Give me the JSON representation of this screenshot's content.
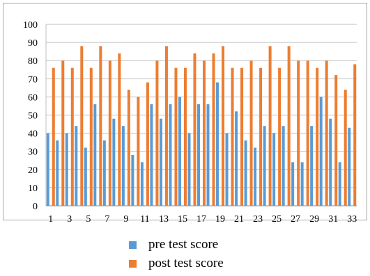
{
  "chart_data": {
    "type": "bar",
    "categories": [
      "1",
      "2",
      "3",
      "4",
      "5",
      "6",
      "7",
      "8",
      "9",
      "10",
      "11",
      "12",
      "13",
      "14",
      "15",
      "16",
      "17",
      "18",
      "19",
      "20",
      "21",
      "22",
      "23",
      "24",
      "25",
      "26",
      "27",
      "28",
      "29",
      "30",
      "31",
      "32",
      "33"
    ],
    "x_tick_labels": [
      "1",
      "3",
      "5",
      "7",
      "9",
      "11",
      "13",
      "15",
      "17",
      "19",
      "21",
      "23",
      "25",
      "27",
      "29",
      "31",
      "33"
    ],
    "y_tick_labels": [
      "0",
      "10",
      "20",
      "30",
      "40",
      "50",
      "60",
      "70",
      "80",
      "90",
      "100"
    ],
    "ylim": [
      0,
      100
    ],
    "grid": "horizontal",
    "legend_position": "bottom",
    "series": [
      {
        "name": "pre test score",
        "color": "#5b9bd5",
        "values": [
          40,
          36,
          40,
          44,
          32,
          56,
          36,
          48,
          44,
          28,
          24,
          56,
          48,
          56,
          60,
          40,
          56,
          56,
          68,
          40,
          52,
          36,
          32,
          44,
          40,
          44,
          24,
          24,
          44,
          60,
          48,
          24,
          43
        ]
      },
      {
        "name": "post test score",
        "color": "#ed7d31",
        "values": [
          76,
          80,
          76,
          88,
          76,
          88,
          80,
          84,
          64,
          60,
          68,
          80,
          88,
          76,
          76,
          84,
          80,
          84,
          88,
          76,
          76,
          80,
          76,
          88,
          76,
          88,
          80,
          80,
          76,
          80,
          72,
          64,
          78
        ]
      }
    ]
  }
}
